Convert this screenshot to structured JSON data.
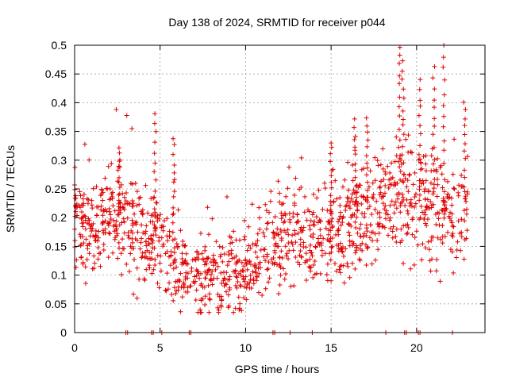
{
  "chart_data": {
    "type": "scatter",
    "title": "Day 138 of 2024, SRMTID for receiver p044",
    "xlabel": "GPS time / hours",
    "ylabel": "SRMTID / TECUs",
    "xlim": [
      0,
      24
    ],
    "ylim": [
      0,
      0.5
    ],
    "xticks": [
      0,
      5,
      10,
      15,
      20
    ],
    "xtick_labels": [
      "0",
      "5",
      "10",
      "15",
      "20"
    ],
    "yticks": [
      0,
      0.05,
      0.1,
      0.15,
      0.2,
      0.25,
      0.3,
      0.35,
      0.4,
      0.45,
      0.5
    ],
    "ytick_labels": [
      "0",
      "0.05",
      "0.1",
      "0.15",
      "0.2",
      "0.25",
      "0.3",
      "0.35",
      "0.4",
      "0.45",
      "0.5"
    ],
    "grid": true,
    "marker": "+",
    "marker_color": "#e00000",
    "x_end": 23,
    "trend": [
      [
        0,
        0.2
      ],
      [
        1,
        0.17
      ],
      [
        2,
        0.21
      ],
      [
        3,
        0.2
      ],
      [
        4,
        0.16
      ],
      [
        5,
        0.15
      ],
      [
        6,
        0.12
      ],
      [
        7,
        0.1
      ],
      [
        8,
        0.09
      ],
      [
        9,
        0.095
      ],
      [
        10,
        0.11
      ],
      [
        11,
        0.14
      ],
      [
        12,
        0.16
      ],
      [
        13,
        0.17
      ],
      [
        14,
        0.16
      ],
      [
        15,
        0.17
      ],
      [
        16,
        0.19
      ],
      [
        17,
        0.2
      ],
      [
        18,
        0.22
      ],
      [
        19,
        0.25
      ],
      [
        20,
        0.22
      ],
      [
        21,
        0.22
      ],
      [
        22,
        0.2
      ],
      [
        23,
        0.2
      ]
    ],
    "spikes": [
      {
        "x": 4.7,
        "y": 0.38
      },
      {
        "x": 5.8,
        "y": 0.34
      },
      {
        "x": 15.0,
        "y": 0.33
      },
      {
        "x": 16.4,
        "y": 0.37
      },
      {
        "x": 17.1,
        "y": 0.37
      },
      {
        "x": 19.0,
        "y": 0.5
      },
      {
        "x": 19.2,
        "y": 0.47
      },
      {
        "x": 20.2,
        "y": 0.44
      },
      {
        "x": 21.0,
        "y": 0.46
      },
      {
        "x": 21.6,
        "y": 0.5
      },
      {
        "x": 22.8,
        "y": 0.4
      },
      {
        "x": 2.6,
        "y": 0.32
      }
    ],
    "zero_points": [
      3.0,
      3.1,
      4.5,
      4.6,
      5.1,
      6.7,
      6.8,
      11.6,
      11.7,
      12.6,
      13.9,
      18.2,
      19.3,
      19.4,
      20.1,
      20.2,
      22.1
    ]
  }
}
